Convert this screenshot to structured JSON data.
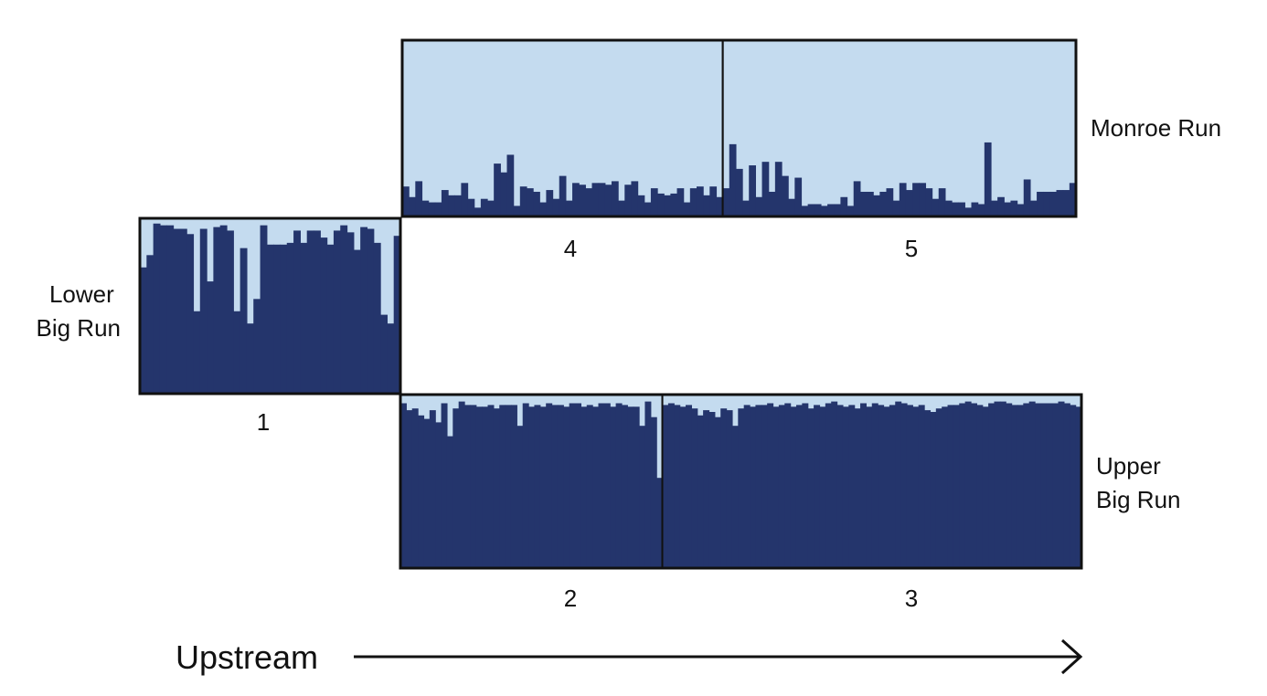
{
  "colors": {
    "background_q": "#c4dbef",
    "dominant_q": "#24356c",
    "frame": "#111111"
  },
  "chart_data": {
    "type": "bar",
    "subtype": "stacked admixture (proportion 0-1)",
    "xlabel": "Upstream",
    "groups": [
      {
        "id": "lower",
        "label_lines": [
          "Lower",
          "Big Run"
        ],
        "sites": [
          {
            "label": "1",
            "values": [
              0.72,
              0.79,
              0.97,
              0.96,
              0.96,
              0.94,
              0.94,
              0.91,
              0.47,
              0.94,
              0.64,
              0.95,
              0.96,
              0.93,
              0.47,
              0.83,
              0.4,
              0.54,
              0.96,
              0.85,
              0.85,
              0.85,
              0.86,
              0.93,
              0.86,
              0.93,
              0.93,
              0.89,
              0.85,
              0.93,
              0.96,
              0.92,
              0.82,
              0.95,
              0.94,
              0.86,
              0.45,
              0.4,
              0.9
            ]
          }
        ]
      },
      {
        "id": "upper",
        "label_lines": [
          "Upper",
          "Big Run"
        ],
        "sites": [
          {
            "label": "2",
            "values": [
              0.95,
              0.91,
              0.92,
              0.88,
              0.86,
              0.91,
              0.84,
              0.95,
              0.76,
              0.92,
              0.96,
              0.94,
              0.94,
              0.93,
              0.93,
              0.94,
              0.92,
              0.94,
              0.94,
              0.94,
              0.82,
              0.95,
              0.93,
              0.94,
              0.93,
              0.95,
              0.94,
              0.94,
              0.93,
              0.95,
              0.95,
              0.93,
              0.94,
              0.93,
              0.95,
              0.95,
              0.93,
              0.95,
              0.94,
              0.93,
              0.93,
              0.82,
              0.96,
              0.87,
              0.52
            ]
          },
          {
            "label": "3",
            "values": [
              0.94,
              0.95,
              0.94,
              0.93,
              0.94,
              0.92,
              0.88,
              0.91,
              0.9,
              0.87,
              0.92,
              0.91,
              0.82,
              0.92,
              0.94,
              0.93,
              0.94,
              0.94,
              0.95,
              0.93,
              0.94,
              0.95,
              0.93,
              0.94,
              0.95,
              0.92,
              0.94,
              0.93,
              0.95,
              0.96,
              0.94,
              0.93,
              0.94,
              0.92,
              0.95,
              0.93,
              0.95,
              0.94,
              0.93,
              0.94,
              0.96,
              0.95,
              0.94,
              0.93,
              0.94,
              0.91,
              0.9,
              0.92,
              0.93,
              0.94,
              0.94,
              0.95,
              0.96,
              0.95,
              0.94,
              0.93,
              0.95,
              0.96,
              0.96,
              0.95,
              0.94,
              0.94,
              0.95,
              0.96,
              0.95,
              0.95,
              0.95,
              0.95,
              0.96,
              0.95,
              0.94,
              0.93
            ]
          }
        ]
      },
      {
        "id": "monroe",
        "label_lines": [
          "Monroe Run"
        ],
        "sites": [
          {
            "label": "4",
            "values": [
              0.17,
              0.11,
              0.2,
              0.09,
              0.08,
              0.08,
              0.15,
              0.12,
              0.12,
              0.19,
              0.1,
              0.05,
              0.1,
              0.09,
              0.3,
              0.25,
              0.35,
              0.06,
              0.17,
              0.16,
              0.14,
              0.08,
              0.15,
              0.1,
              0.23,
              0.09,
              0.19,
              0.18,
              0.16,
              0.19,
              0.19,
              0.18,
              0.2,
              0.09,
              0.18,
              0.2,
              0.12,
              0.08,
              0.16,
              0.13,
              0.12,
              0.13,
              0.16,
              0.08,
              0.16,
              0.17,
              0.12,
              0.17,
              0.11
            ]
          },
          {
            "label": "5",
            "values": [
              0.16,
              0.41,
              0.27,
              0.09,
              0.29,
              0.11,
              0.31,
              0.14,
              0.31,
              0.23,
              0.1,
              0.22,
              0.06,
              0.07,
              0.07,
              0.06,
              0.07,
              0.07,
              0.11,
              0.06,
              0.2,
              0.14,
              0.14,
              0.12,
              0.14,
              0.16,
              0.09,
              0.19,
              0.15,
              0.19,
              0.19,
              0.16,
              0.1,
              0.16,
              0.09,
              0.08,
              0.08,
              0.05,
              0.08,
              0.07,
              0.42,
              0.09,
              0.11,
              0.08,
              0.09,
              0.07,
              0.21,
              0.09,
              0.14,
              0.14,
              0.14,
              0.15,
              0.15,
              0.19
            ]
          }
        ]
      }
    ]
  }
}
